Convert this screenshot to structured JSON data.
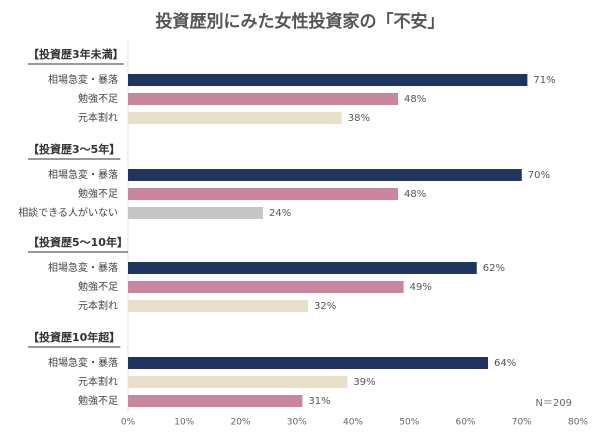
{
  "chart_data": {
    "type": "bar",
    "orientation": "horizontal",
    "title": "投資歴別にみた女性投資家の「不安」",
    "note": "N＝209",
    "xlim": [
      0,
      80
    ],
    "xticks": [
      {
        "value": 0,
        "label": "0%"
      },
      {
        "value": 10,
        "label": "10%"
      },
      {
        "value": 20,
        "label": "20%"
      },
      {
        "value": 30,
        "label": "30%"
      },
      {
        "value": 40,
        "label": "40%"
      },
      {
        "value": 50,
        "label": "50%"
      },
      {
        "value": 60,
        "label": "60%"
      },
      {
        "value": 70,
        "label": "70%"
      },
      {
        "value": 80,
        "label": "80%"
      }
    ],
    "grid": false,
    "groups": [
      {
        "title": "【投資歴3年未満】",
        "categories": [
          "相場急変・暴落",
          "勉強不足",
          "元本割れ"
        ],
        "values": [
          71,
          48,
          38
        ],
        "value_labels": [
          "71%",
          "48%",
          "38%"
        ],
        "colors": [
          "#1f3560",
          "#c9869f",
          "#e9e0c9"
        ]
      },
      {
        "title": "【投資歴3～5年】",
        "categories": [
          "相場急変・暴落",
          "勉強不足",
          "相談できる人がいない"
        ],
        "values": [
          70,
          48,
          24
        ],
        "value_labels": [
          "70%",
          "48%",
          "24%"
        ],
        "colors": [
          "#1f3560",
          "#c9869f",
          "#c6c6c6"
        ]
      },
      {
        "title": "【投資歴5～10年】",
        "categories": [
          "相場急変・暴落",
          "勉強不足",
          "元本割れ"
        ],
        "values": [
          62,
          49,
          32
        ],
        "value_labels": [
          "62%",
          "49%",
          "32%"
        ],
        "colors": [
          "#1f3560",
          "#c9869f",
          "#e9e0c9"
        ]
      },
      {
        "title": "【投資歴10年超】",
        "categories": [
          "相場急変・暴落",
          "元本割れ",
          "勉強不足"
        ],
        "values": [
          64,
          39,
          31
        ],
        "value_labels": [
          "64%",
          "39%",
          "31%"
        ],
        "colors": [
          "#1f3560",
          "#e9e0c9",
          "#c9869f"
        ]
      }
    ]
  }
}
